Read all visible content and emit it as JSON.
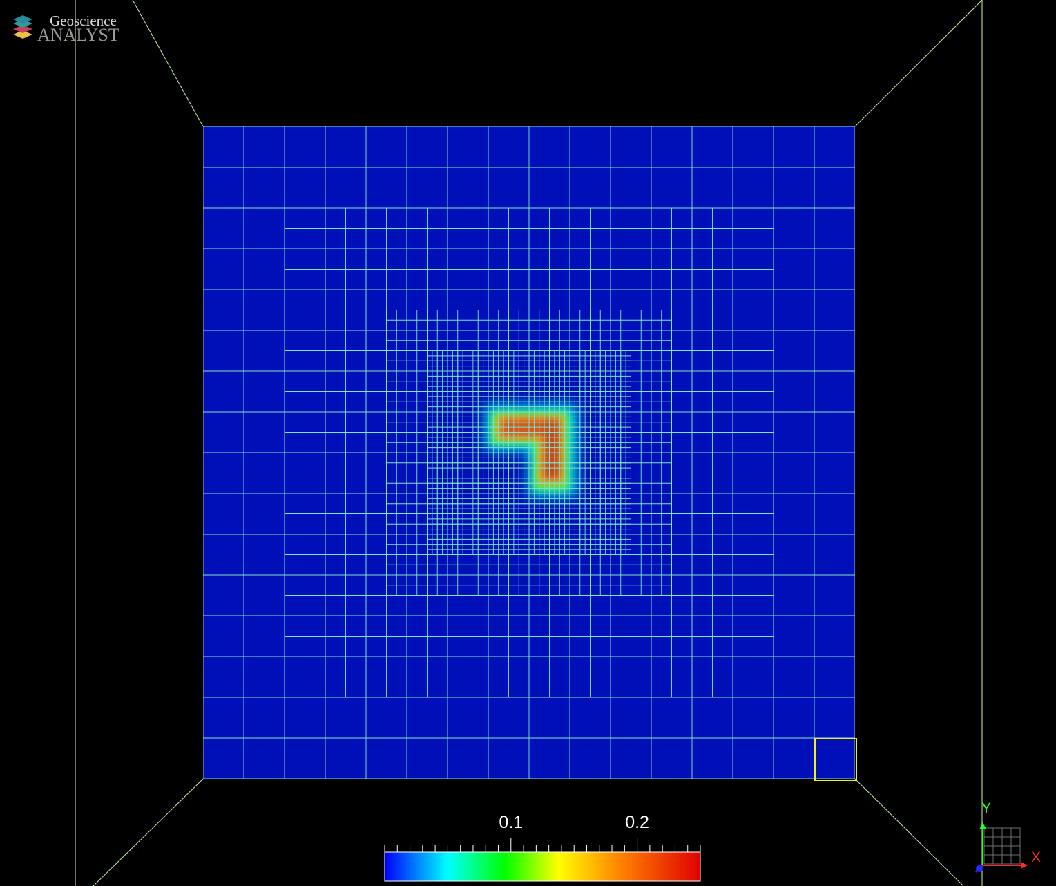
{
  "app": {
    "logo_line1": "Geoscience",
    "logo_line2": "ANALYST",
    "logo_colors": [
      "#2a9d9a",
      "#c7415e",
      "#e8c04a"
    ]
  },
  "viewport": {
    "background": "#000000",
    "mesh_line_color": "#7fe6c9",
    "box_line_color": "#c8f5b0",
    "selection_color": "#f2ef1c",
    "base_cell_color": "#0010b8"
  },
  "colorbar": {
    "min": 0.0,
    "max": 0.25,
    "tick_labels": [
      {
        "text": "0.1",
        "value": 0.1
      },
      {
        "text": "0.2",
        "value": 0.2
      }
    ],
    "title": "",
    "colormap": [
      "#0000ff",
      "#00ffff",
      "#00ff00",
      "#ffff00",
      "#ff8000",
      "#e00000"
    ]
  },
  "axes": {
    "x_label": "X",
    "y_label": "Y",
    "x_color": "#ff2a2a",
    "y_color": "#2aff2a",
    "z_color": "#2a2aff"
  },
  "anomaly": {
    "peak_value": 0.22,
    "shape": "L-shaped"
  }
}
